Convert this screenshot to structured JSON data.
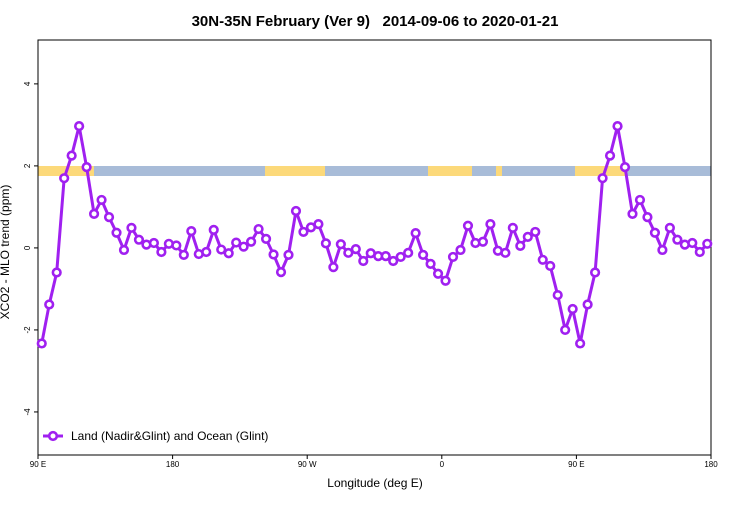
{
  "chart_data": {
    "type": "line",
    "title": "30N-35N February (Ver 9)   2014-09-06 to 2020-01-21",
    "xlabel": "Longitude (deg E)",
    "ylabel": "XCO2 - MLO trend (ppm)",
    "x": [
      92.5,
      97.5,
      102.5,
      107.5,
      112.5,
      117.5,
      122.5,
      127.5,
      132.5,
      137.5,
      142.5,
      147.5,
      152.5,
      157.5,
      162.5,
      167.5,
      172.5,
      177.5,
      182.5,
      187.5,
      192.5,
      197.5,
      202.5,
      207.5,
      212.5,
      217.5,
      222.5,
      227.5,
      232.5,
      237.5,
      242.5,
      247.5,
      252.5,
      257.5,
      262.5,
      267.5,
      272.5,
      277.5,
      282.5,
      287.5,
      292.5,
      297.5,
      302.5,
      307.5,
      312.5,
      317.5,
      322.5,
      327.5,
      332.5,
      337.5,
      342.5,
      347.5,
      352.5,
      357.5,
      362.5,
      367.5,
      372.5,
      377.5,
      382.5,
      387.5,
      392.5,
      397.5,
      402.5,
      407.5,
      412.5,
      417.5,
      422.5,
      427.5,
      432.5,
      437.5,
      442.5,
      447.5,
      452.5,
      457.5,
      462.5,
      467.5,
      472.5,
      477.5,
      482.5,
      487.5,
      492.5,
      497.5,
      502.5,
      507.5,
      512.5,
      517.5,
      522.5,
      527.5,
      532.5,
      537.5
    ],
    "series": [
      {
        "name": "Land (Nadir&Glint) and Ocean (Glint)",
        "color": "#a020f0",
        "values": [
          -2.33,
          -1.38,
          -0.6,
          1.7,
          2.25,
          2.97,
          1.97,
          0.83,
          1.17,
          0.75,
          0.37,
          -0.05,
          0.49,
          0.2,
          0.08,
          0.12,
          -0.1,
          0.1,
          0.06,
          -0.17,
          0.41,
          -0.15,
          -0.1,
          0.44,
          -0.04,
          -0.13,
          0.13,
          0.03,
          0.15,
          0.46,
          0.22,
          -0.16,
          -0.59,
          -0.17,
          0.9,
          0.39,
          0.5,
          0.58,
          0.11,
          -0.47,
          0.09,
          -0.12,
          -0.03,
          -0.32,
          -0.13,
          -0.2,
          -0.2,
          -0.32,
          -0.22,
          -0.12,
          0.36,
          -0.17,
          -0.39,
          -0.63,
          -0.8,
          -0.22,
          -0.05,
          0.54,
          0.12,
          0.15,
          0.58,
          -0.07,
          -0.12,
          0.49,
          0.05,
          0.27,
          0.39,
          -0.29,
          -0.44,
          -1.15,
          -2.0,
          -1.49,
          -2.33,
          -1.38,
          -0.6,
          1.7,
          2.25,
          2.97,
          1.97,
          0.83,
          1.17,
          0.75,
          0.37,
          -0.05,
          0.49,
          0.2,
          0.08,
          0.12,
          -0.1,
          0.1
        ]
      }
    ],
    "xlim": [
      90,
      540
    ],
    "ylim": [
      -5.05,
      5.07
    ],
    "xticks": [
      {
        "value": 90,
        "label": "90 E"
      },
      180,
      {
        "value": 270,
        "label": "90 W"
      },
      0,
      {
        "value": 450,
        "label": "90 E"
      },
      {
        "value": 540,
        "label": "180"
      }
    ],
    "yticks": [
      -4,
      -2,
      0,
      2,
      4
    ],
    "legend": "lower left"
  }
}
